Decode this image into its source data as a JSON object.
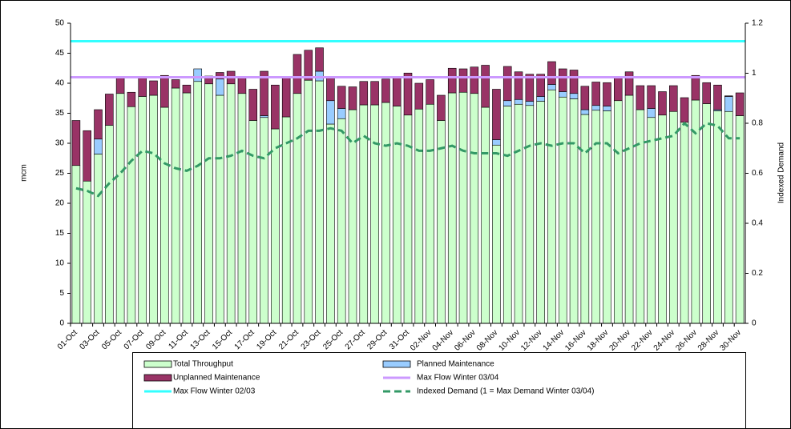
{
  "chart_data": {
    "type": "bar",
    "ylabel": "mcm",
    "y2label": "Indexed Demand",
    "ylim": [
      0,
      50
    ],
    "yticks": [
      0,
      5,
      10,
      15,
      20,
      25,
      30,
      35,
      40,
      45,
      50
    ],
    "y2lim": [
      0,
      1.2
    ],
    "y2ticks": [
      0,
      0.2,
      0.4,
      0.6,
      0.8,
      1,
      1.2
    ],
    "categories": [
      "01-Oct",
      null,
      "03-Oct",
      null,
      "05-Oct",
      null,
      "07-Oct",
      null,
      "09-Oct",
      null,
      "11-Oct",
      null,
      "13-Oct",
      null,
      "15-Oct",
      null,
      "17-Oct",
      null,
      "19-Oct",
      null,
      "21-Oct",
      null,
      "23-Oct",
      null,
      "25-Oct",
      null,
      "27-Oct",
      null,
      "29-Oct",
      null,
      "31-Oct",
      null,
      "02-Nov",
      null,
      "04-Nov",
      null,
      "06-Nov",
      null,
      "08-Nov",
      null,
      "10-Nov",
      null,
      "12-Nov",
      null,
      "14-Nov",
      null,
      "16-Nov",
      null,
      "18-Nov",
      null,
      "20-Nov",
      null,
      "22-Nov",
      null,
      "24-Nov",
      null,
      "26-Nov",
      null,
      "28-Nov",
      null,
      "30-Nov"
    ],
    "series": [
      {
        "name": "Total Throughput",
        "type": "bar",
        "color": "#ccffcc",
        "values": [
          26.3,
          23.7,
          28.2,
          33,
          38.3,
          36.1,
          37.8,
          38,
          36,
          39.2,
          38.4,
          40.3,
          39.9,
          38,
          39.9,
          38.3,
          33.8,
          34.3,
          32.4,
          34.4,
          38.3,
          40.5,
          40.4,
          33.2,
          34.1,
          35.6,
          36.4,
          36.4,
          36.8,
          36.2,
          34.7,
          35.7,
          36.5,
          33.8,
          38.4,
          38.5,
          38.3,
          36,
          29.7,
          36.2,
          36.5,
          36.3,
          37,
          38.9,
          37.7,
          37.4,
          34.8,
          35.5,
          35.4,
          37.1,
          38,
          35.6,
          34.3,
          34.7,
          35.3,
          33.5,
          37.2,
          36.6,
          35.4,
          35.3,
          34.6
        ]
      },
      {
        "name": "Planned Maintenance",
        "type": "bar",
        "color": "#99ccff",
        "values": [
          0,
          0,
          2.5,
          0,
          0,
          0,
          0,
          0,
          0,
          0,
          0,
          2.1,
          0,
          2.7,
          0,
          0,
          0,
          0.3,
          0,
          0,
          0,
          0,
          1.6,
          3.9,
          1.7,
          0,
          0,
          0,
          0,
          0,
          0,
          0,
          0,
          0,
          0,
          0,
          0,
          0,
          0.9,
          0.9,
          0.8,
          0.7,
          0.8,
          0.9,
          0.9,
          0.9,
          0.8,
          0.8,
          0.8,
          0,
          0,
          0,
          1.5,
          0,
          0,
          0,
          0,
          0,
          0.2,
          2.5,
          0
        ]
      },
      {
        "name": "Unplanned Maintenance",
        "type": "bar",
        "color": "#993366",
        "values": [
          7.5,
          8.4,
          4.9,
          5.2,
          2.7,
          2.4,
          3.2,
          2.4,
          5.3,
          1.4,
          1.3,
          0,
          1.3,
          1.1,
          2.1,
          2.7,
          5.2,
          7.4,
          7.3,
          6.6,
          6.5,
          5,
          3.9,
          3.9,
          3.7,
          3.8,
          3.9,
          3.9,
          3.9,
          4.8,
          7,
          4.3,
          4.1,
          4.2,
          4.1,
          3.9,
          4.4,
          7,
          8.4,
          5.7,
          4.6,
          4.5,
          3.7,
          3.8,
          3.8,
          3.9,
          3.9,
          3.9,
          3.9,
          3.9,
          3.9,
          4,
          3.8,
          3.9,
          4.3,
          4.1,
          4.1,
          3.5,
          4.1,
          0.1,
          3.8
        ]
      },
      {
        "name": "Max Flow Winter 03/04",
        "type": "hline",
        "color": "#cc99ff",
        "value": 41
      },
      {
        "name": "Max Flow Winter 02/03",
        "type": "hline",
        "color": "#33ffff",
        "value": 47
      },
      {
        "name": "Indexed Demand (1 = Max Demand Winter 03/04)",
        "type": "line",
        "axis": "y2",
        "color": "#339966",
        "values": [
          0.54,
          0.53,
          0.51,
          0.56,
          0.6,
          0.65,
          0.69,
          0.68,
          0.64,
          0.62,
          0.61,
          0.63,
          0.66,
          0.66,
          0.67,
          0.69,
          0.67,
          0.66,
          0.7,
          0.72,
          0.74,
          0.77,
          0.77,
          0.78,
          0.77,
          0.72,
          0.75,
          0.72,
          0.71,
          0.72,
          0.71,
          0.69,
          0.69,
          0.7,
          0.71,
          0.69,
          0.68,
          0.68,
          0.68,
          0.67,
          0.69,
          0.71,
          0.72,
          0.71,
          0.72,
          0.72,
          0.68,
          0.72,
          0.72,
          0.68,
          0.7,
          0.72,
          0.73,
          0.74,
          0.75,
          0.8,
          0.76,
          0.8,
          0.79,
          0.74,
          0.74
        ]
      }
    ]
  }
}
